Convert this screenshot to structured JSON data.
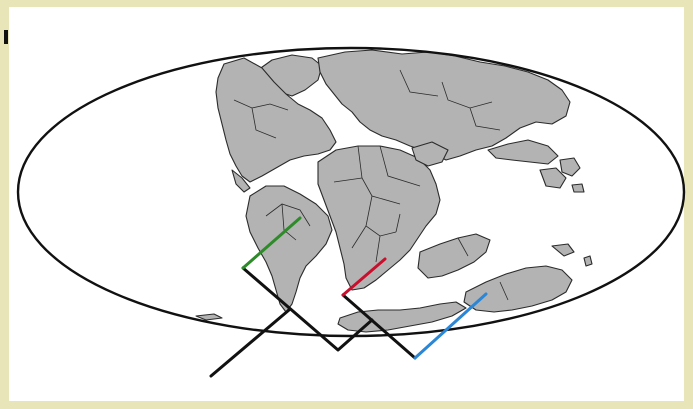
{
  "map": {
    "projection": "Mollweide",
    "features": [
      {
        "name": "north-america",
        "kind": "continent"
      },
      {
        "name": "greenland",
        "kind": "landmass"
      },
      {
        "name": "eurasia",
        "kind": "continent"
      },
      {
        "name": "south-america",
        "kind": "continent"
      },
      {
        "name": "africa",
        "kind": "continent"
      },
      {
        "name": "madagascar",
        "kind": "island"
      },
      {
        "name": "india",
        "kind": "landmass"
      },
      {
        "name": "antarctica",
        "kind": "continent"
      },
      {
        "name": "australia",
        "kind": "continent"
      }
    ],
    "colors": {
      "background_frame": "#e8e6b8",
      "land": "#b3b3b3",
      "coastline": "#2b2b2b",
      "ocean": "#ffffff",
      "ridge_black": "#111111",
      "ridge_green": "#2e8b2a",
      "ridge_red": "#c8102e",
      "ridge_blue": "#2b86d6"
    },
    "overlay": {
      "ridge_segments": [
        "black",
        "green",
        "red",
        "blue"
      ],
      "description_shown": false
    }
  }
}
